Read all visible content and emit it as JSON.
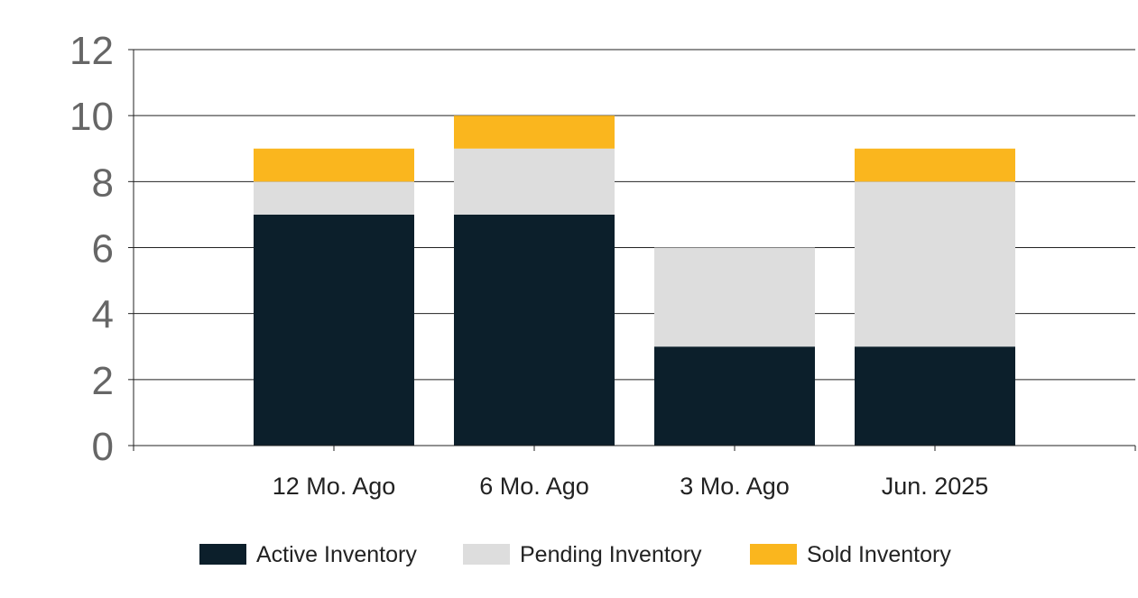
{
  "chart_data": {
    "type": "bar",
    "stacked": true,
    "categories": [
      "12 Mo. Ago",
      "6 Mo. Ago",
      "3 Mo. Ago",
      "Jun. 2025"
    ],
    "series": [
      {
        "name": "Active Inventory",
        "values": [
          7,
          7,
          3,
          3
        ],
        "color": "#0c1f2b"
      },
      {
        "name": "Pending Inventory",
        "values": [
          1,
          2,
          3,
          5
        ],
        "color": "#dddddd"
      },
      {
        "name": "Sold Inventory",
        "values": [
          1,
          1,
          0,
          1
        ],
        "color": "#fab61e"
      }
    ],
    "title": "",
    "xlabel": "",
    "ylabel": "",
    "ylim": [
      0,
      12
    ],
    "yticks": [
      "0",
      "2",
      "4",
      "6",
      "8",
      "10",
      "12"
    ],
    "grid": true,
    "legend_position": "bottom"
  }
}
